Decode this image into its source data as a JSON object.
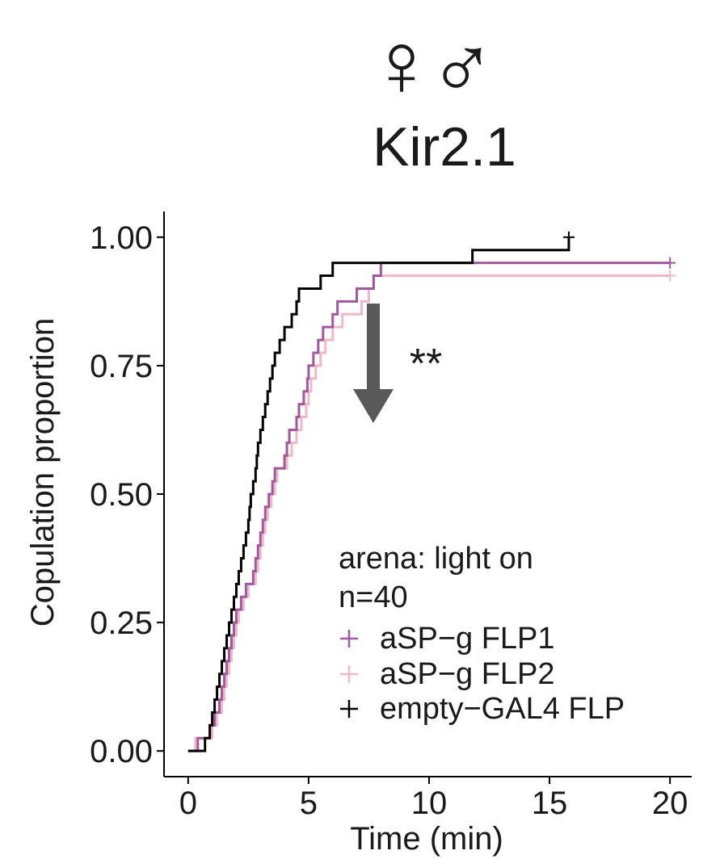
{
  "header": {
    "female_symbol": "♀",
    "male_symbol": "♂",
    "female_color": "#e4158f",
    "male_color": "#3aac3a",
    "title": "Kir2.1"
  },
  "annotation": {
    "significance": "**",
    "arrow_color": "#595959",
    "arrow_direction": "down"
  },
  "legend": {
    "line1": "arena: light on",
    "line2": "n=40",
    "position": "bottom-right"
  },
  "chart_data": {
    "type": "line",
    "step": true,
    "title": "Kir2.1",
    "xlabel": "Time (min)",
    "ylabel": "Copulation proportion",
    "xlim": [
      -1,
      20.9
    ],
    "ylim": [
      -0.05,
      1.05
    ],
    "xticks": [
      0,
      5,
      10,
      15,
      20
    ],
    "xtick_labels": [
      "0",
      "5",
      "10",
      "15",
      "20"
    ],
    "yticks": [
      0,
      0.25,
      0.5,
      0.75,
      1.0
    ],
    "ytick_labels": [
      "0.00",
      "0.25",
      "0.50",
      "0.75",
      "1.00"
    ],
    "grid": false,
    "legend_position": "bottom-right",
    "series": [
      {
        "name": "aSP−g FLP1",
        "color": "#a0589e",
        "censor_mark": "+",
        "points": [
          [
            0,
            0
          ],
          [
            0.4,
            0.025
          ],
          [
            0.9,
            0.05
          ],
          [
            1.1,
            0.075
          ],
          [
            1.3,
            0.1
          ],
          [
            1.4,
            0.125
          ],
          [
            1.5,
            0.15
          ],
          [
            1.6,
            0.175
          ],
          [
            1.7,
            0.2
          ],
          [
            1.8,
            0.225
          ],
          [
            1.9,
            0.25
          ],
          [
            2.0,
            0.275
          ],
          [
            2.2,
            0.3
          ],
          [
            2.4,
            0.325
          ],
          [
            2.7,
            0.35
          ],
          [
            2.8,
            0.375
          ],
          [
            2.9,
            0.4
          ],
          [
            3.0,
            0.425
          ],
          [
            3.1,
            0.45
          ],
          [
            3.2,
            0.475
          ],
          [
            3.35,
            0.5
          ],
          [
            3.5,
            0.525
          ],
          [
            3.6,
            0.55
          ],
          [
            4.0,
            0.575
          ],
          [
            4.1,
            0.6
          ],
          [
            4.2,
            0.625
          ],
          [
            4.5,
            0.65
          ],
          [
            4.6,
            0.675
          ],
          [
            4.8,
            0.7
          ],
          [
            4.95,
            0.725
          ],
          [
            5.0,
            0.75
          ],
          [
            5.2,
            0.775
          ],
          [
            5.4,
            0.8
          ],
          [
            5.6,
            0.825
          ],
          [
            6.0,
            0.85
          ],
          [
            6.2,
            0.875
          ],
          [
            7.0,
            0.9
          ],
          [
            7.7,
            0.925
          ],
          [
            8.0,
            0.95
          ],
          [
            20,
            0.95
          ]
        ]
      },
      {
        "name": "aSP−g FLP2",
        "color": "#f2b8c6",
        "censor_mark": "+",
        "points": [
          [
            0,
            0
          ],
          [
            0.3,
            0.025
          ],
          [
            1.0,
            0.05
          ],
          [
            1.2,
            0.075
          ],
          [
            1.4,
            0.1
          ],
          [
            1.5,
            0.125
          ],
          [
            1.6,
            0.15
          ],
          [
            1.7,
            0.175
          ],
          [
            1.8,
            0.2
          ],
          [
            1.9,
            0.225
          ],
          [
            2.0,
            0.25
          ],
          [
            2.1,
            0.275
          ],
          [
            2.3,
            0.3
          ],
          [
            2.5,
            0.325
          ],
          [
            2.8,
            0.35
          ],
          [
            2.9,
            0.375
          ],
          [
            3.0,
            0.4
          ],
          [
            3.1,
            0.425
          ],
          [
            3.2,
            0.45
          ],
          [
            3.3,
            0.475
          ],
          [
            3.45,
            0.5
          ],
          [
            3.6,
            0.525
          ],
          [
            3.7,
            0.55
          ],
          [
            4.1,
            0.575
          ],
          [
            4.3,
            0.6
          ],
          [
            4.5,
            0.625
          ],
          [
            4.7,
            0.65
          ],
          [
            4.9,
            0.675
          ],
          [
            5.0,
            0.7
          ],
          [
            5.1,
            0.725
          ],
          [
            5.3,
            0.75
          ],
          [
            5.5,
            0.775
          ],
          [
            5.7,
            0.8
          ],
          [
            6.0,
            0.825
          ],
          [
            6.4,
            0.85
          ],
          [
            7.2,
            0.875
          ],
          [
            7.5,
            0.9
          ],
          [
            7.7,
            0.925
          ],
          [
            20,
            0.925
          ]
        ]
      },
      {
        "name": "empty−GAL4 FLP",
        "color": "#000000",
        "censor_mark": "+",
        "points": [
          [
            0,
            0
          ],
          [
            0.7,
            0.025
          ],
          [
            0.9,
            0.05
          ],
          [
            1.0,
            0.075
          ],
          [
            1.1,
            0.1
          ],
          [
            1.2,
            0.125
          ],
          [
            1.3,
            0.15
          ],
          [
            1.4,
            0.175
          ],
          [
            1.5,
            0.2
          ],
          [
            1.6,
            0.225
          ],
          [
            1.7,
            0.25
          ],
          [
            1.8,
            0.275
          ],
          [
            1.9,
            0.3
          ],
          [
            2.0,
            0.325
          ],
          [
            2.1,
            0.35
          ],
          [
            2.2,
            0.375
          ],
          [
            2.3,
            0.4
          ],
          [
            2.4,
            0.425
          ],
          [
            2.5,
            0.45
          ],
          [
            2.55,
            0.475
          ],
          [
            2.6,
            0.5
          ],
          [
            2.7,
            0.525
          ],
          [
            2.8,
            0.55
          ],
          [
            2.85,
            0.575
          ],
          [
            2.9,
            0.6
          ],
          [
            3.0,
            0.625
          ],
          [
            3.1,
            0.65
          ],
          [
            3.2,
            0.675
          ],
          [
            3.3,
            0.7
          ],
          [
            3.4,
            0.725
          ],
          [
            3.5,
            0.75
          ],
          [
            3.6,
            0.775
          ],
          [
            3.8,
            0.8
          ],
          [
            4.0,
            0.825
          ],
          [
            4.3,
            0.85
          ],
          [
            4.5,
            0.875
          ],
          [
            4.6,
            0.9
          ],
          [
            5.5,
            0.925
          ],
          [
            6.0,
            0.95
          ],
          [
            11.8,
            0.975
          ],
          [
            15.8,
            1.0
          ]
        ]
      }
    ]
  }
}
